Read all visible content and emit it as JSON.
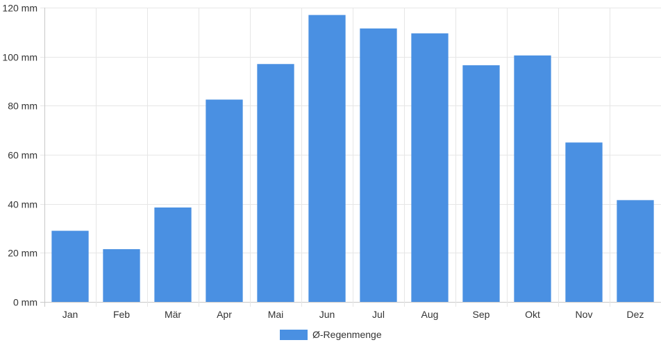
{
  "chart_data": {
    "type": "bar",
    "categories": [
      "Jan",
      "Feb",
      "Mär",
      "Apr",
      "Mai",
      "Jun",
      "Jul",
      "Aug",
      "Sep",
      "Okt",
      "Nov",
      "Dez"
    ],
    "series": [
      {
        "name": "Ø-Regenmenge",
        "color": "#4a90e2",
        "values": [
          29,
          21.5,
          38.5,
          82.5,
          97,
          117,
          111.5,
          109.5,
          96.5,
          100.5,
          65,
          41.5
        ]
      }
    ],
    "ylim": [
      0,
      120
    ],
    "yticks": [
      0,
      20,
      40,
      60,
      80,
      100,
      120
    ],
    "ytick_suffix": " mm",
    "grid": true,
    "legend_position": "bottom-center"
  }
}
